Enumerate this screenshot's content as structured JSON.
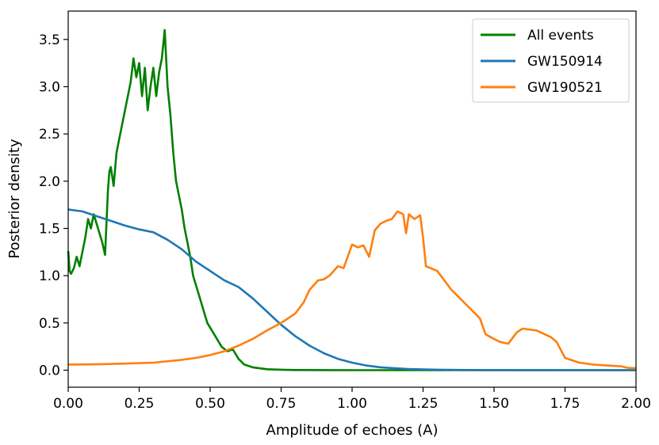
{
  "chart_data": {
    "type": "line",
    "title": "",
    "xlabel": "Amplitude of echoes (A)",
    "ylabel": "Posterior density",
    "xlim": [
      0.0,
      2.0
    ],
    "ylim": [
      -0.18,
      3.8
    ],
    "xticks": [
      0.0,
      0.25,
      0.5,
      0.75,
      1.0,
      1.25,
      1.5,
      1.75,
      2.0
    ],
    "xtick_labels": [
      "0.00",
      "0.25",
      "0.50",
      "0.75",
      "1.00",
      "1.25",
      "1.50",
      "1.75",
      "2.00"
    ],
    "yticks": [
      0.0,
      0.5,
      1.0,
      1.5,
      2.0,
      2.5,
      3.0,
      3.5
    ],
    "ytick_labels": [
      "0.0",
      "0.5",
      "1.0",
      "1.5",
      "2.0",
      "2.5",
      "3.0",
      "3.5"
    ],
    "grid": false,
    "legend_position": "top-right",
    "series": [
      {
        "name": "All events",
        "color": "#008000",
        "x": [
          0.0,
          0.005,
          0.01,
          0.02,
          0.03,
          0.04,
          0.05,
          0.06,
          0.07,
          0.08,
          0.09,
          0.1,
          0.11,
          0.12,
          0.13,
          0.14,
          0.145,
          0.15,
          0.16,
          0.17,
          0.18,
          0.19,
          0.2,
          0.21,
          0.22,
          0.23,
          0.24,
          0.25,
          0.26,
          0.27,
          0.28,
          0.29,
          0.3,
          0.31,
          0.32,
          0.33,
          0.34,
          0.35,
          0.36,
          0.37,
          0.38,
          0.39,
          0.4,
          0.41,
          0.42,
          0.43,
          0.44,
          0.45,
          0.46,
          0.47,
          0.48,
          0.49,
          0.5,
          0.52,
          0.54,
          0.56,
          0.58,
          0.6,
          0.62,
          0.65,
          0.7,
          0.75,
          0.8,
          0.9,
          1.0,
          1.25,
          1.5,
          1.75,
          2.0
        ],
        "values": [
          1.26,
          1.05,
          1.02,
          1.08,
          1.2,
          1.1,
          1.25,
          1.4,
          1.6,
          1.5,
          1.65,
          1.55,
          1.45,
          1.35,
          1.22,
          1.9,
          2.1,
          2.15,
          1.95,
          2.3,
          2.45,
          2.6,
          2.75,
          2.9,
          3.05,
          3.3,
          3.1,
          3.25,
          2.9,
          3.2,
          2.75,
          3.0,
          3.2,
          2.9,
          3.15,
          3.3,
          3.6,
          3.0,
          2.7,
          2.3,
          2.0,
          1.85,
          1.7,
          1.5,
          1.35,
          1.2,
          1.0,
          0.9,
          0.8,
          0.7,
          0.6,
          0.5,
          0.45,
          0.35,
          0.25,
          0.2,
          0.22,
          0.12,
          0.06,
          0.03,
          0.01,
          0.005,
          0.002,
          0.001,
          0.0,
          0.0,
          0.0,
          0.0,
          0.0
        ]
      },
      {
        "name": "GW150914",
        "color": "#1f77b4",
        "x": [
          0.0,
          0.05,
          0.1,
          0.15,
          0.2,
          0.25,
          0.3,
          0.35,
          0.4,
          0.45,
          0.5,
          0.55,
          0.6,
          0.65,
          0.7,
          0.75,
          0.8,
          0.85,
          0.9,
          0.95,
          1.0,
          1.05,
          1.1,
          1.15,
          1.2,
          1.3,
          1.4,
          1.5,
          1.75,
          2.0
        ],
        "values": [
          1.7,
          1.68,
          1.63,
          1.58,
          1.53,
          1.49,
          1.46,
          1.38,
          1.28,
          1.15,
          1.05,
          0.95,
          0.88,
          0.76,
          0.62,
          0.48,
          0.36,
          0.26,
          0.18,
          0.12,
          0.08,
          0.05,
          0.03,
          0.02,
          0.012,
          0.005,
          0.002,
          0.001,
          0.0,
          0.0
        ]
      },
      {
        "name": "GW190521",
        "color": "#ff7f0e",
        "x": [
          0.0,
          0.1,
          0.2,
          0.3,
          0.4,
          0.45,
          0.5,
          0.55,
          0.6,
          0.65,
          0.7,
          0.75,
          0.8,
          0.83,
          0.85,
          0.88,
          0.9,
          0.92,
          0.95,
          0.97,
          1.0,
          1.02,
          1.04,
          1.06,
          1.08,
          1.1,
          1.12,
          1.14,
          1.16,
          1.18,
          1.19,
          1.2,
          1.22,
          1.24,
          1.25,
          1.26,
          1.3,
          1.35,
          1.4,
          1.45,
          1.47,
          1.5,
          1.52,
          1.55,
          1.58,
          1.6,
          1.65,
          1.7,
          1.72,
          1.75,
          1.8,
          1.85,
          1.9,
          1.95,
          1.97,
          2.0
        ],
        "values": [
          0.06,
          0.062,
          0.07,
          0.08,
          0.11,
          0.13,
          0.16,
          0.2,
          0.26,
          0.33,
          0.42,
          0.5,
          0.6,
          0.72,
          0.85,
          0.95,
          0.96,
          1.0,
          1.1,
          1.08,
          1.33,
          1.3,
          1.32,
          1.2,
          1.48,
          1.55,
          1.58,
          1.6,
          1.68,
          1.65,
          1.45,
          1.65,
          1.6,
          1.64,
          1.4,
          1.1,
          1.05,
          0.85,
          0.7,
          0.55,
          0.38,
          0.33,
          0.3,
          0.28,
          0.4,
          0.44,
          0.42,
          0.35,
          0.3,
          0.13,
          0.08,
          0.06,
          0.05,
          0.04,
          0.025,
          0.02
        ]
      }
    ]
  }
}
